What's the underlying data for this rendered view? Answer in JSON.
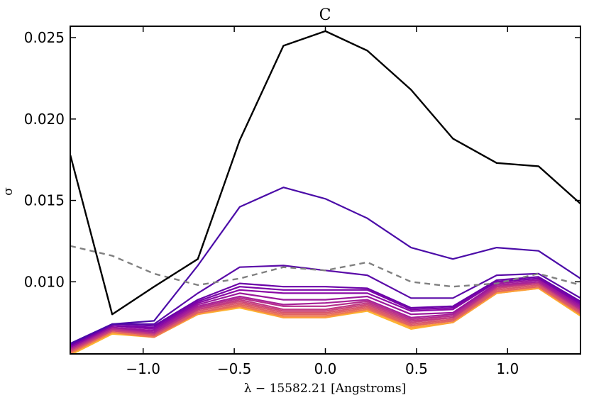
{
  "chart_data": {
    "type": "line",
    "title": "C",
    "xlabel": "λ − 15582.21 [Angstroms]",
    "ylabel": "σ",
    "xlim": [
      -1.4,
      1.4
    ],
    "ylim": [
      0.00557,
      0.0257
    ],
    "xticks": [
      -1.0,
      -0.5,
      0.0,
      0.5,
      1.0
    ],
    "xtick_labels": [
      "−1.0",
      "−0.5",
      "0.0",
      "0.5",
      "1.0"
    ],
    "yticks": [
      0.01,
      0.015,
      0.02,
      0.025
    ],
    "ytick_labels": [
      "0.010",
      "0.015",
      "0.020",
      "0.025"
    ],
    "x": [
      -1.4,
      -1.17,
      -0.94,
      -0.7,
      -0.47,
      -0.23,
      0.0,
      0.23,
      0.47,
      0.7,
      0.94,
      1.17,
      1.4
    ],
    "series": [
      {
        "name": "black",
        "color": "#000000",
        "style": "solid",
        "values": [
          0.0178,
          0.008,
          0.0097,
          0.0114,
          0.0187,
          0.0245,
          0.0254,
          0.0242,
          0.0218,
          0.0188,
          0.0173,
          0.0171,
          0.0148
        ]
      },
      {
        "name": "dashed-reference",
        "color": "#808080",
        "style": "dashed",
        "values": [
          0.0122,
          0.0116,
          0.0105,
          0.0098,
          0.0102,
          0.0109,
          0.0107,
          0.0112,
          0.01,
          0.0097,
          0.0099,
          0.0105,
          0.0098
        ]
      },
      {
        "name": "purple-1",
        "color": "#4b0ca8",
        "style": "solid",
        "values": [
          0.0062,
          0.0074,
          0.0076,
          0.011,
          0.0146,
          0.0158,
          0.0151,
          0.0139,
          0.0121,
          0.0114,
          0.0121,
          0.0119,
          0.0102
        ]
      },
      {
        "name": "purple-2",
        "color": "#5a0aa8",
        "style": "solid",
        "values": [
          0.0062,
          0.0074,
          0.0074,
          0.0093,
          0.0109,
          0.011,
          0.0107,
          0.0104,
          0.009,
          0.009,
          0.0104,
          0.0105,
          0.009
        ]
      },
      {
        "name": "purple-3",
        "color": "#6a00a8",
        "style": "solid",
        "values": [
          0.0061,
          0.0074,
          0.0073,
          0.0089,
          0.0099,
          0.0097,
          0.0097,
          0.0096,
          0.0084,
          0.0085,
          0.0101,
          0.0103,
          0.0088
        ]
      },
      {
        "name": "purple-4",
        "color": "#7a04a7",
        "style": "solid",
        "values": [
          0.0061,
          0.0073,
          0.0072,
          0.0088,
          0.0097,
          0.0095,
          0.0095,
          0.0095,
          0.0083,
          0.0084,
          0.01,
          0.0102,
          0.0087
        ]
      },
      {
        "name": "purple-5",
        "color": "#8a09a5",
        "style": "solid",
        "values": [
          0.006,
          0.0073,
          0.0071,
          0.0087,
          0.0095,
          0.0093,
          0.0093,
          0.0093,
          0.0082,
          0.0083,
          0.01,
          0.0102,
          0.0086
        ]
      },
      {
        "name": "purple-6",
        "color": "#9a179b",
        "style": "solid",
        "values": [
          0.006,
          0.0072,
          0.007,
          0.0086,
          0.0093,
          0.0089,
          0.0089,
          0.0091,
          0.008,
          0.0081,
          0.0099,
          0.0101,
          0.0085
        ]
      },
      {
        "name": "magenta-1",
        "color": "#a72197",
        "style": "solid",
        "values": [
          0.0059,
          0.0072,
          0.0069,
          0.0085,
          0.0091,
          0.0086,
          0.0087,
          0.0089,
          0.0078,
          0.008,
          0.0098,
          0.01,
          0.0084
        ]
      },
      {
        "name": "magenta-2",
        "color": "#b52f8c",
        "style": "solid",
        "values": [
          0.0059,
          0.0071,
          0.0069,
          0.0084,
          0.009,
          0.0085,
          0.0085,
          0.0088,
          0.0077,
          0.0079,
          0.0097,
          0.01,
          0.0083
        ]
      },
      {
        "name": "pink-1",
        "color": "#c03a83",
        "style": "solid",
        "values": [
          0.0058,
          0.0071,
          0.0068,
          0.0083,
          0.0089,
          0.0083,
          0.0083,
          0.0087,
          0.0076,
          0.0078,
          0.0097,
          0.0099,
          0.0083
        ]
      },
      {
        "name": "pink-2",
        "color": "#cc4778",
        "style": "solid",
        "values": [
          0.0058,
          0.007,
          0.0068,
          0.0083,
          0.0088,
          0.0082,
          0.0082,
          0.0086,
          0.0075,
          0.0078,
          0.0096,
          0.0099,
          0.0082
        ]
      },
      {
        "name": "salmon-1",
        "color": "#d8576b",
        "style": "solid",
        "values": [
          0.0057,
          0.007,
          0.0067,
          0.0082,
          0.0087,
          0.0081,
          0.0081,
          0.0085,
          0.0074,
          0.0077,
          0.0095,
          0.0098,
          0.0081
        ]
      },
      {
        "name": "salmon-2",
        "color": "#e16462",
        "style": "solid",
        "values": [
          0.0057,
          0.007,
          0.0067,
          0.0081,
          0.0086,
          0.008,
          0.008,
          0.0084,
          0.0073,
          0.0076,
          0.0094,
          0.0097,
          0.0081
        ]
      },
      {
        "name": "orange-1",
        "color": "#ed7953",
        "style": "solid",
        "values": [
          0.0056,
          0.0069,
          0.0066,
          0.0081,
          0.0085,
          0.0079,
          0.0079,
          0.0083,
          0.0073,
          0.0076,
          0.0094,
          0.0097,
          0.008
        ]
      },
      {
        "name": "orange-2",
        "color": "#fb9f3a",
        "style": "solid",
        "values": [
          0.0056,
          0.0069,
          0.0066,
          0.008,
          0.0085,
          0.0078,
          0.0078,
          0.0083,
          0.0072,
          0.0075,
          0.0093,
          0.0096,
          0.008
        ]
      },
      {
        "name": "orange-3",
        "color": "#fdb42f",
        "style": "solid",
        "values": [
          0.0055,
          0.0068,
          0.0066,
          0.008,
          0.0084,
          0.0078,
          0.0078,
          0.0082,
          0.0071,
          0.0075,
          0.0093,
          0.0096,
          0.0079
        ]
      }
    ]
  }
}
